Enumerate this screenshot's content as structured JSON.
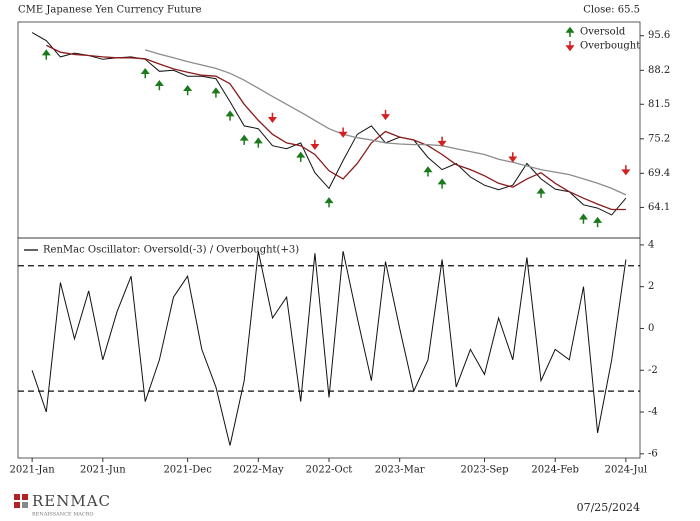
{
  "chart_data": [
    {
      "type": "line",
      "title": "CME Japanese Yen Currency Future",
      "close_label": "Close: 65.5",
      "x": [
        "2021-01",
        "2021-02",
        "2021-03",
        "2021-04",
        "2021-05",
        "2021-06",
        "2021-07",
        "2021-08",
        "2021-09",
        "2021-10",
        "2021-11",
        "2021-12",
        "2022-01",
        "2022-02",
        "2022-03",
        "2022-04",
        "2022-05",
        "2022-06",
        "2022-07",
        "2022-08",
        "2022-09",
        "2022-10",
        "2022-11",
        "2022-12",
        "2023-01",
        "2023-02",
        "2023-03",
        "2023-04",
        "2023-05",
        "2023-06",
        "2023-07",
        "2023-08",
        "2023-09",
        "2023-10",
        "2023-11",
        "2023-12",
        "2024-01",
        "2024-02",
        "2024-03",
        "2024-04",
        "2024-05",
        "2024-06",
        "2024-07"
      ],
      "series": [
        {
          "color": "#111111",
          "values": [
            96.3,
            94.5,
            91.0,
            91.8,
            91.3,
            90.5,
            90.8,
            91.0,
            90.5,
            88.0,
            88.2,
            87.0,
            87.0,
            86.5,
            82.0,
            77.5,
            77.0,
            74.0,
            73.5,
            74.5,
            69.5,
            67.0,
            71.5,
            76.0,
            77.5,
            74.5,
            75.5,
            75.0,
            72.0,
            70.0,
            71.0,
            68.8,
            67.5,
            66.8,
            67.5,
            71.0,
            68.5,
            66.9,
            66.5,
            64.5,
            64.0,
            63.0,
            65.5
          ]
        },
        {
          "color": "#8b1a1a",
          "values": [
            null,
            93.5,
            92.0,
            91.5,
            91.3,
            91.0,
            90.8,
            90.8,
            90.6,
            89.5,
            88.5,
            87.8,
            87.2,
            87.0,
            85.5,
            81.5,
            78.5,
            76.0,
            74.5,
            74.0,
            72.5,
            69.8,
            68.5,
            71.0,
            74.5,
            76.5,
            75.5,
            75.0,
            74.0,
            72.5,
            70.8,
            70.0,
            69.0,
            67.8,
            67.2,
            68.5,
            69.5,
            67.8,
            66.5,
            65.5,
            64.6,
            63.8,
            63.8
          ]
        },
        {
          "color": "#8c8c8c",
          "values": [
            null,
            null,
            null,
            null,
            null,
            null,
            null,
            null,
            92.5,
            91.6,
            90.8,
            90.0,
            89.3,
            88.6,
            87.6,
            86.2,
            84.6,
            83.0,
            81.5,
            80.0,
            78.5,
            77.0,
            76.0,
            75.4,
            75.0,
            74.5,
            74.3,
            74.2,
            74.2,
            74.0,
            73.5,
            73.0,
            72.5,
            71.7,
            71.2,
            70.6,
            70.0,
            69.6,
            69.2,
            68.5,
            67.8,
            67.0,
            66.0
          ]
        }
      ],
      "annotations": [
        {
          "label": "Oversold",
          "color": "#1a7a1a",
          "direction": "up",
          "x": [
            "2021-02",
            "2021-09",
            "2021-10",
            "2021-12",
            "2022-02",
            "2022-03",
            "2022-04",
            "2022-05",
            "2022-08",
            "2022-10",
            "2023-05",
            "2023-06",
            "2024-01",
            "2024-04",
            "2024-05"
          ]
        },
        {
          "label": "Overbought",
          "color": "#d42020",
          "direction": "down",
          "x": [
            "2022-06",
            "2022-09",
            "2022-11",
            "2023-02",
            "2023-06",
            "2023-11",
            "2024-07"
          ]
        }
      ],
      "xlim": [
        "2020-12",
        "2024-08"
      ],
      "ylim": [
        59.7,
        98.7
      ],
      "log": true,
      "yticks": [
        95.6,
        88.2,
        81.5,
        75.2,
        69.4,
        64.1
      ]
    },
    {
      "type": "line",
      "x": [
        "2021-01",
        "2021-02",
        "2021-03",
        "2021-04",
        "2021-05",
        "2021-06",
        "2021-07",
        "2021-08",
        "2021-09",
        "2021-10",
        "2021-11",
        "2021-12",
        "2022-01",
        "2022-02",
        "2022-03",
        "2022-04",
        "2022-05",
        "2022-06",
        "2022-07",
        "2022-08",
        "2022-09",
        "2022-10",
        "2022-11",
        "2022-12",
        "2023-01",
        "2023-02",
        "2023-03",
        "2023-04",
        "2023-05",
        "2023-06",
        "2023-07",
        "2023-08",
        "2023-09",
        "2023-10",
        "2023-11",
        "2023-12",
        "2024-01",
        "2024-02",
        "2024-03",
        "2024-04",
        "2024-05",
        "2024-06",
        "2024-07"
      ],
      "series": [
        {
          "name": "RenMac Oscillator: Oversold(-3) / Overbought(+3)",
          "color": "#111111",
          "values": [
            -2.0,
            -4.0,
            2.2,
            -0.5,
            1.8,
            -1.5,
            0.8,
            2.5,
            -3.5,
            -1.5,
            1.5,
            2.5,
            -1.0,
            -2.8,
            -5.6,
            -2.5,
            3.7,
            0.5,
            1.5,
            -3.5,
            3.6,
            -3.3,
            3.7,
            0.5,
            -2.5,
            3.2,
            0.0,
            -3.0,
            -1.5,
            3.3,
            -2.8,
            -1.0,
            -2.2,
            0.5,
            -1.5,
            3.4,
            -2.5,
            -1.0,
            -1.5,
            2.0,
            -5.0,
            -1.5,
            3.3
          ]
        }
      ],
      "thresholds": [
        -3,
        3
      ],
      "xlim": [
        "2020-12",
        "2024-08"
      ],
      "xticks": [
        {
          "value": "2021-01",
          "label": "2021-Jan"
        },
        {
          "value": "2021-06",
          "label": "2021-Jun"
        },
        {
          "value": "2021-12",
          "label": "2021-Dec"
        },
        {
          "value": "2022-05",
          "label": "2022-May"
        },
        {
          "value": "2022-10",
          "label": "2022-Oct"
        },
        {
          "value": "2023-03",
          "label": "2023-Mar"
        },
        {
          "value": "2023-09",
          "label": "2023-Sep"
        },
        {
          "value": "2024-02",
          "label": "2024-Feb"
        },
        {
          "value": "2024-07",
          "label": "2024-Jul"
        }
      ],
      "ylim": [
        -6.2,
        4.33
      ],
      "yticks": [
        4,
        2,
        0,
        -2,
        -4,
        -6
      ]
    }
  ],
  "footer": {
    "logo": "RENMAC",
    "logo_sub": "RENAISSANCE MACRO",
    "date": "07/25/2024"
  }
}
